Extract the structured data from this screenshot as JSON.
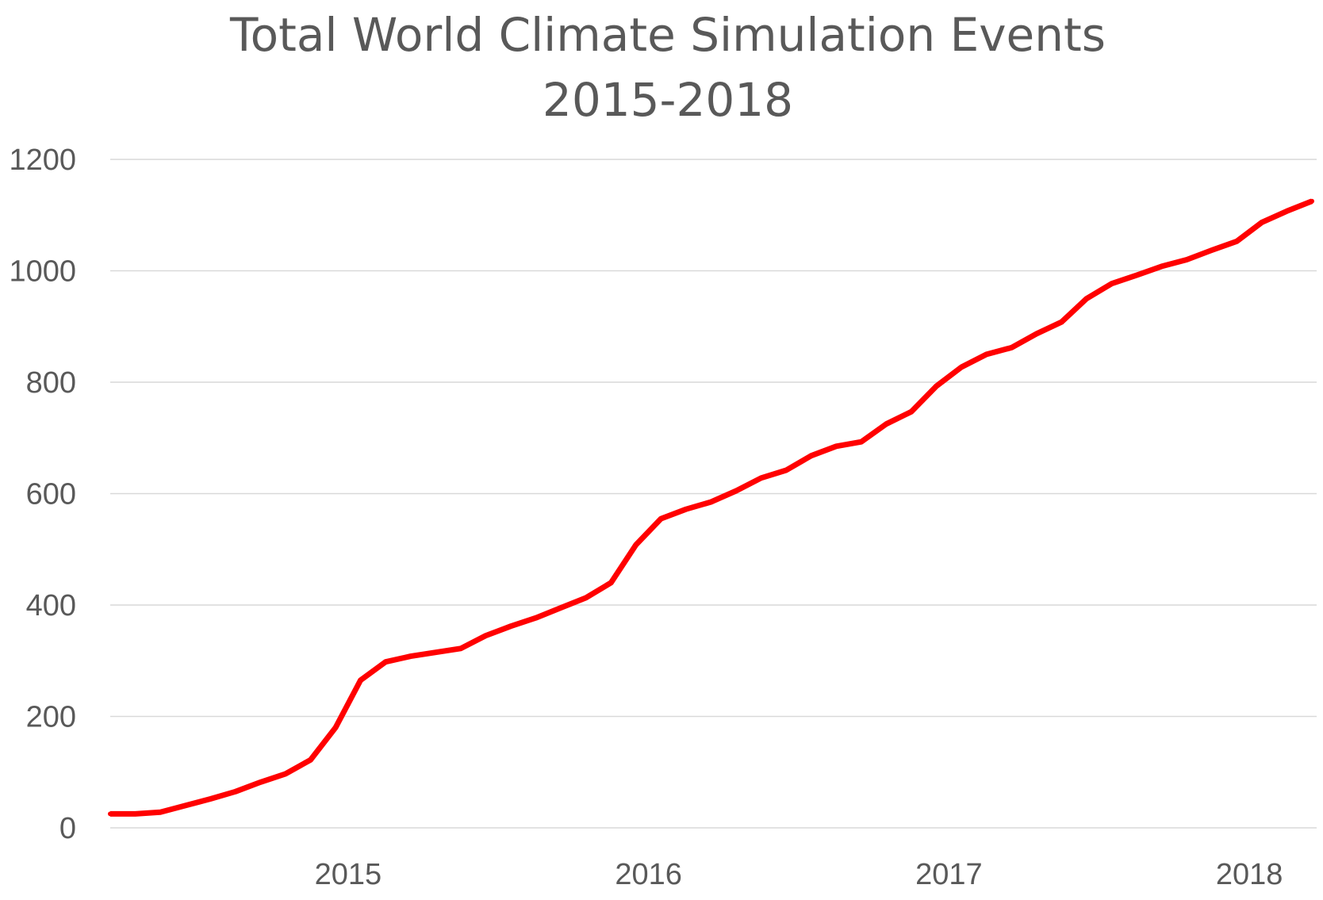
{
  "colors": {
    "series": "#ff0000",
    "text": "#595959",
    "grid": "#d9d9d9",
    "background": "#ffffff"
  },
  "chart_data": {
    "type": "line",
    "title": "Total World Climate Simulation Events",
    "subtitle": "2015-2018",
    "xlabel": "",
    "ylabel": "",
    "ylim": [
      0,
      1200
    ],
    "y_ticks": [
      "0",
      "200",
      "400",
      "600",
      "800",
      "1000",
      "1200"
    ],
    "x_ticks": [
      "2015",
      "2016",
      "2017",
      "2018"
    ],
    "grid": true,
    "legend": "none",
    "series": [
      {
        "color": "#ff0000",
        "x": [
          "2014-09",
          "2014-10",
          "2014-11",
          "2014-12",
          "2015-01",
          "2015-02",
          "2015-03",
          "2015-04",
          "2015-05",
          "2015-06",
          "2015-07",
          "2015-08",
          "2015-09",
          "2015-10",
          "2015-11",
          "2015-12",
          "2016-01",
          "2016-02",
          "2016-03",
          "2016-04",
          "2016-05",
          "2016-06",
          "2016-07",
          "2016-08",
          "2016-09",
          "2016-10",
          "2016-11",
          "2016-12",
          "2017-01",
          "2017-02",
          "2017-03",
          "2017-04",
          "2017-05",
          "2017-06",
          "2017-07",
          "2017-08",
          "2017-09",
          "2017-10",
          "2017-11",
          "2017-12",
          "2018-01",
          "2018-02",
          "2018-03",
          "2018-04",
          "2018-05",
          "2018-06",
          "2018-07",
          "2018-08",
          "2018-09"
        ],
        "values": [
          25,
          25,
          28,
          40,
          52,
          65,
          82,
          97,
          122,
          180,
          265,
          298,
          308,
          315,
          322,
          345,
          362,
          377,
          395,
          413,
          440,
          508,
          555,
          572,
          585,
          605,
          628,
          642,
          668,
          685,
          693,
          725,
          747,
          793,
          827,
          850,
          862,
          887,
          908,
          950,
          977,
          992,
          1008,
          1020,
          1037,
          1053,
          1087,
          1107,
          1125
        ]
      }
    ]
  }
}
